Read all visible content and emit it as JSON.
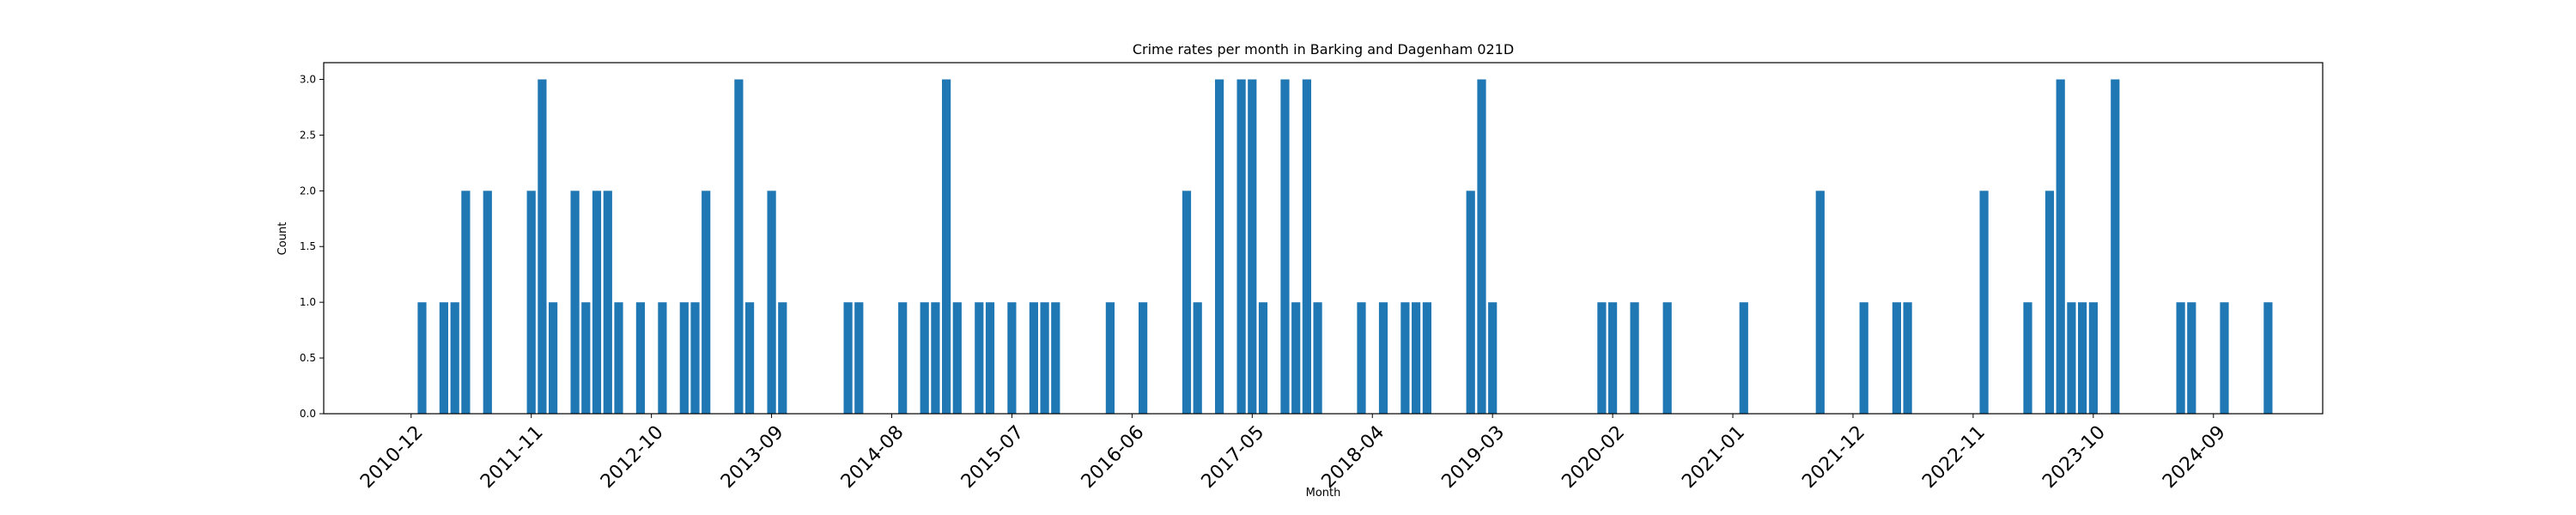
{
  "chart_data": {
    "type": "bar",
    "title": "Crime rates per month in Barking and Dagenham 021D",
    "xlabel": "Month",
    "ylabel": "Count",
    "ylim": [
      0,
      3.15
    ],
    "yticks": [
      "0.0",
      "0.5",
      "1.0",
      "1.5",
      "2.0",
      "2.5",
      "3.0"
    ],
    "ytick_values": [
      0,
      0.5,
      1.0,
      1.5,
      2.0,
      2.5,
      3.0
    ],
    "xticks": [
      "2010-12",
      "2011-11",
      "2012-10",
      "2013-09",
      "2014-08",
      "2015-07",
      "2016-06",
      "2017-05",
      "2018-04",
      "2019-03",
      "2020-02",
      "2021-01",
      "2021-12",
      "2022-11",
      "2023-10",
      "2024-09"
    ],
    "x_range": [
      "2010-04",
      "2025-07"
    ],
    "grid": false,
    "bar_color": "#1f77b4",
    "x": [
      "2011-01",
      "2011-03",
      "2011-04",
      "2011-05",
      "2011-07",
      "2011-11",
      "2011-12",
      "2012-01",
      "2012-03",
      "2012-04",
      "2012-05",
      "2012-06",
      "2012-07",
      "2012-09",
      "2012-11",
      "2013-01",
      "2013-02",
      "2013-03",
      "2013-06",
      "2013-07",
      "2013-09",
      "2013-10",
      "2014-04",
      "2014-05",
      "2014-09",
      "2014-11",
      "2014-12",
      "2015-01",
      "2015-02",
      "2015-04",
      "2015-05",
      "2015-07",
      "2015-09",
      "2015-10",
      "2015-11",
      "2016-04",
      "2016-07",
      "2016-11",
      "2016-12",
      "2017-02",
      "2017-04",
      "2017-05",
      "2017-06",
      "2017-08",
      "2017-09",
      "2017-10",
      "2017-11",
      "2018-03",
      "2018-05",
      "2018-07",
      "2018-08",
      "2018-09",
      "2019-01",
      "2019-02",
      "2019-03",
      "2020-01",
      "2020-02",
      "2020-04",
      "2020-07",
      "2021-02",
      "2021-09",
      "2022-01",
      "2022-04",
      "2022-05",
      "2022-12",
      "2023-04",
      "2023-06",
      "2023-07",
      "2023-08",
      "2023-09",
      "2023-10",
      "2023-12",
      "2024-06",
      "2024-07",
      "2024-10",
      "2025-02"
    ],
    "values": [
      1,
      1,
      1,
      2,
      2,
      2,
      3,
      1,
      2,
      1,
      2,
      2,
      1,
      1,
      1,
      1,
      1,
      2,
      3,
      1,
      2,
      1,
      1,
      1,
      1,
      1,
      1,
      3,
      1,
      1,
      1,
      1,
      1,
      1,
      1,
      1,
      1,
      2,
      1,
      3,
      3,
      3,
      1,
      3,
      1,
      3,
      1,
      1,
      1,
      1,
      1,
      1,
      2,
      3,
      1,
      1,
      1,
      1,
      1,
      1,
      2,
      1,
      1,
      1,
      2,
      1,
      2,
      3,
      1,
      1,
      1,
      3,
      1,
      1,
      1,
      1
    ]
  }
}
